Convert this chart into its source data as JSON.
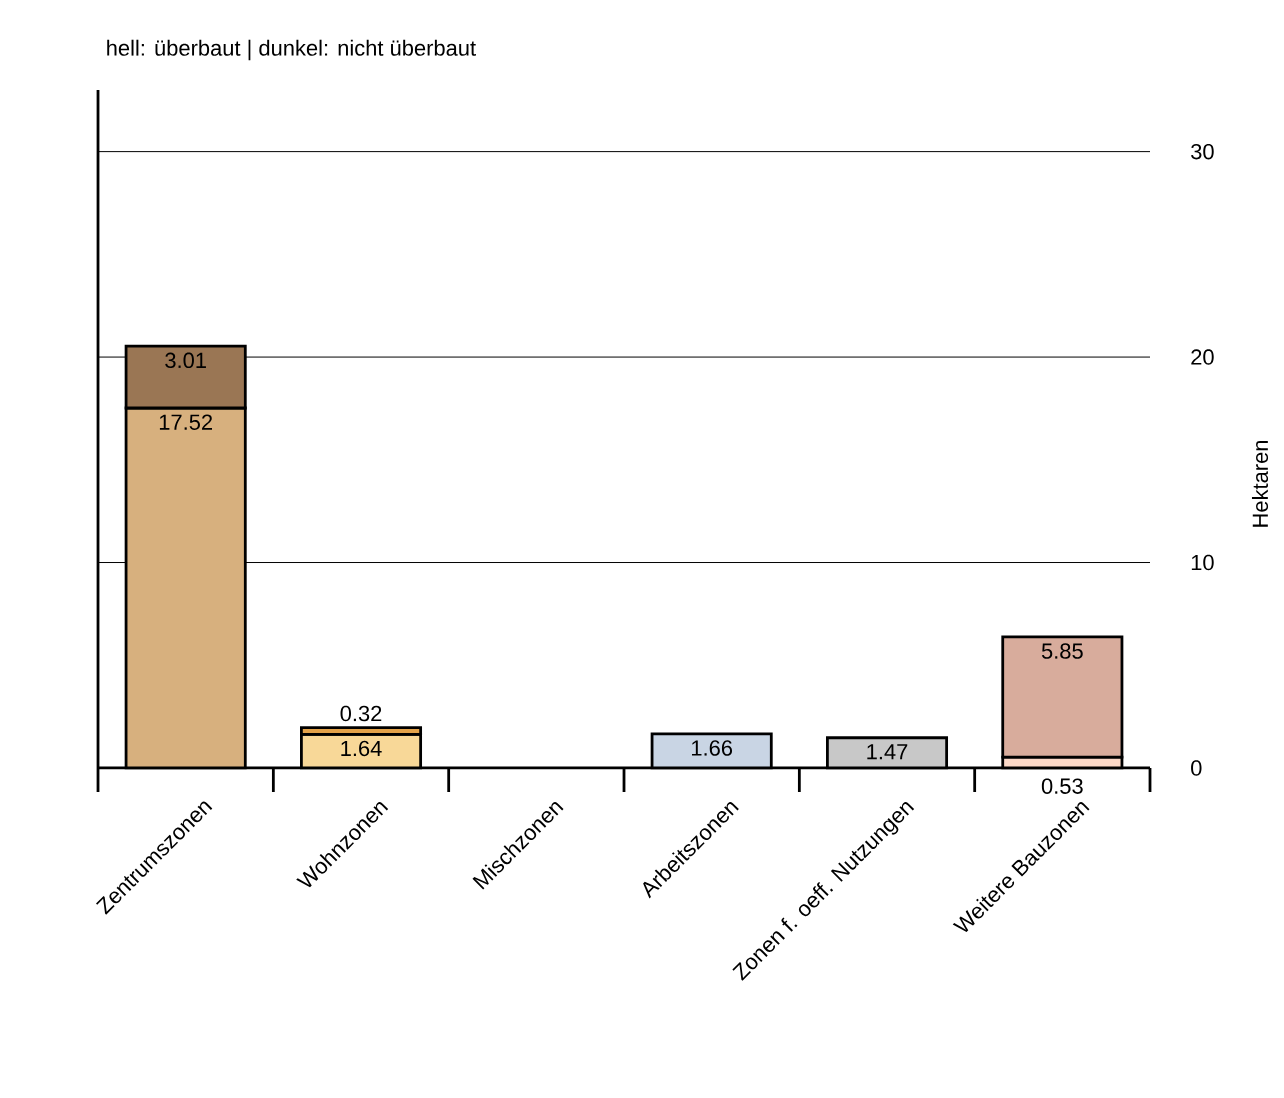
{
  "chart_data": {
    "type": "bar",
    "title": "hell: überbaut | dunkel: nicht überbaut",
    "ylabel": "Hektaren",
    "categories": [
      "Zentrumszonen",
      "Wohnzonen",
      "Mischzonen",
      "Arbeitszonen",
      "Zonen f. oeff. Nutzungen",
      "Weitere Bauzonen"
    ],
    "stacked": true,
    "series": [
      {
        "colors": [
          "#d7b07e",
          "#f8d898",
          null,
          "#c9d5e4",
          "#c8c8c8",
          "#fcd9c8"
        ],
        "values": [
          17.52,
          1.64,
          null,
          1.66,
          1.47,
          0.53
        ]
      },
      {
        "colors": [
          "#9a7654",
          "#e3a24a",
          null,
          null,
          null,
          "#d8ac9c"
        ],
        "values": [
          3.01,
          0.32,
          null,
          null,
          null,
          5.85
        ]
      }
    ],
    "ylim": [
      0,
      33
    ],
    "yticks": [
      0,
      10,
      20,
      30
    ],
    "grid": "y",
    "data_labels": true
  }
}
